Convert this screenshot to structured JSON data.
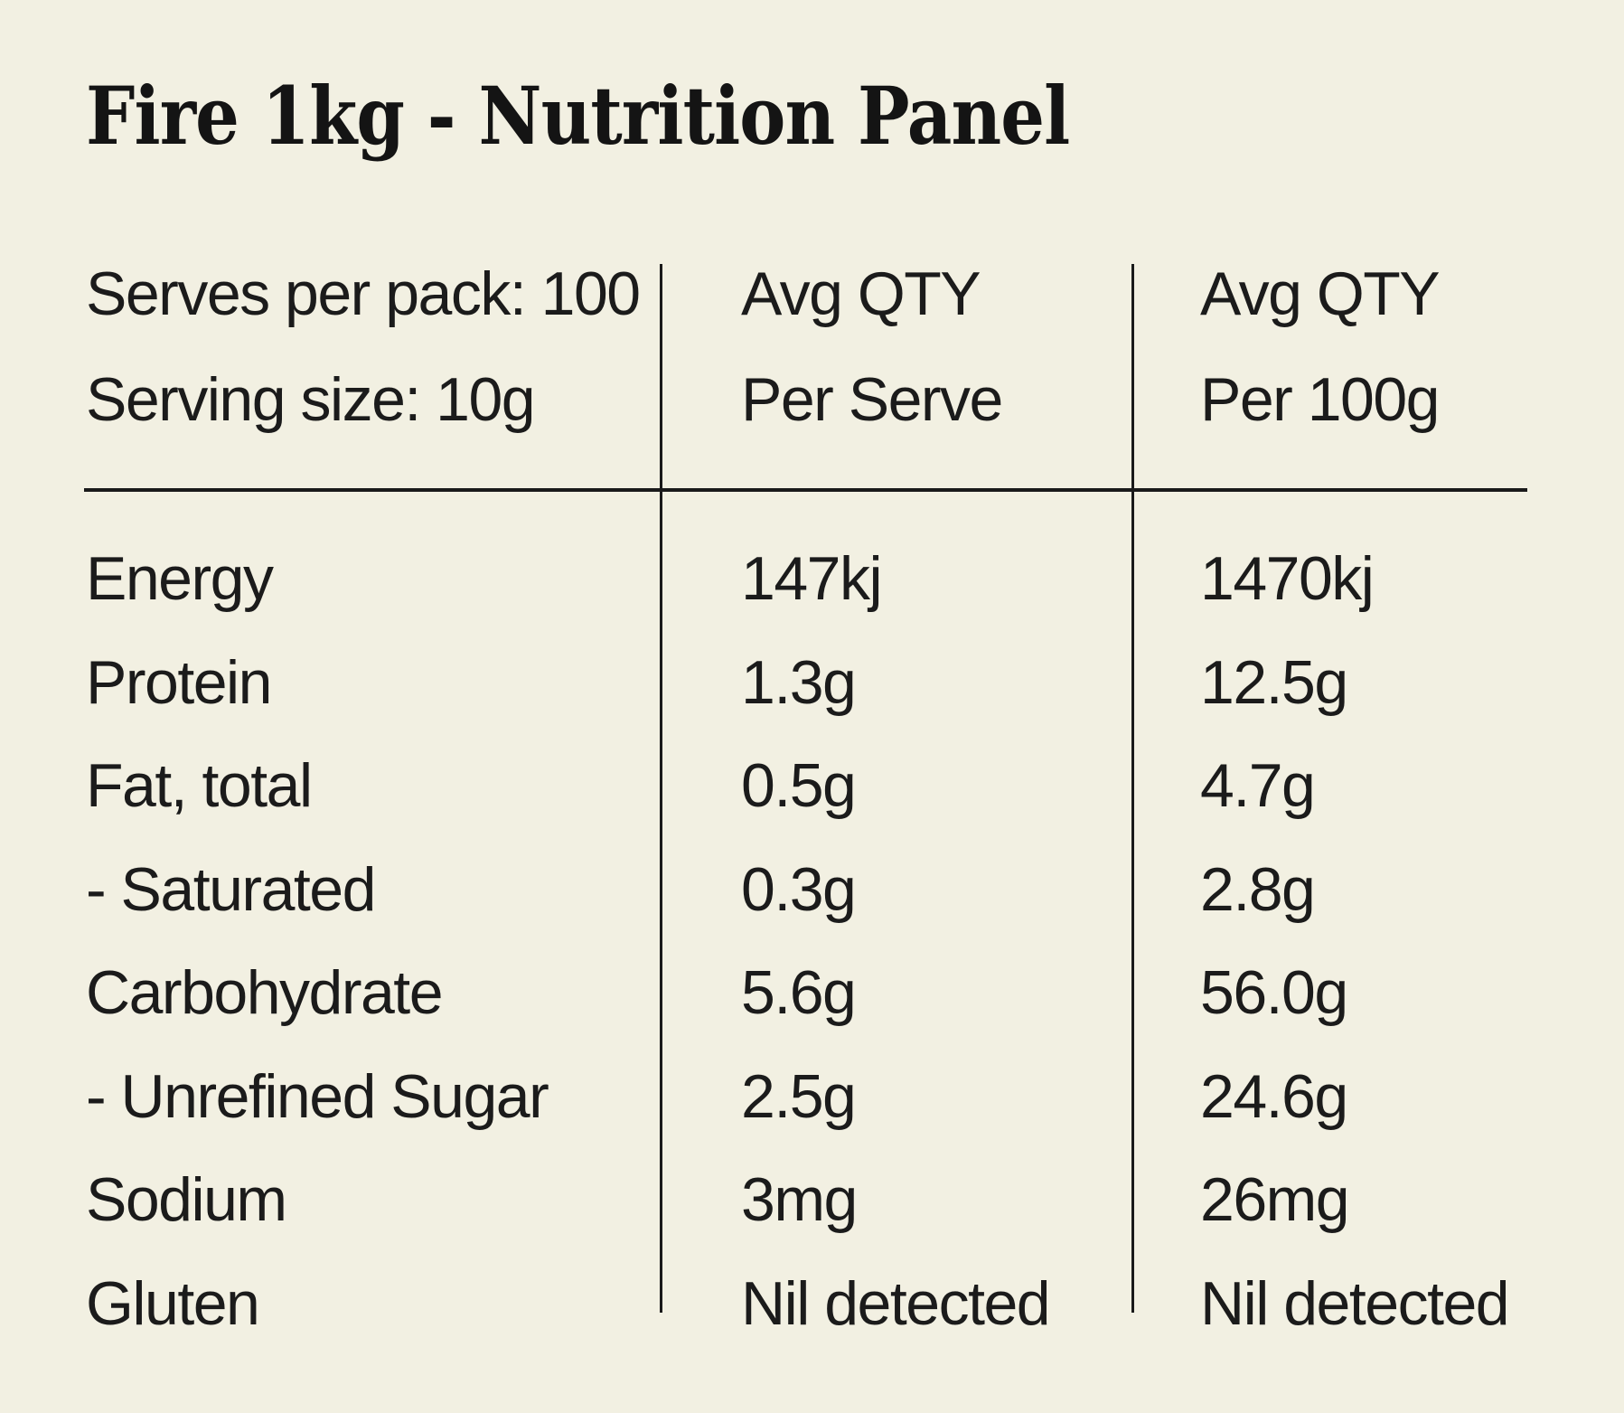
{
  "page": {
    "title": "Fire 1kg - Nutrition Panel"
  },
  "colors": {
    "background": "#f2f0e2",
    "ink": "#1b1b1b",
    "title_ink": "#141414",
    "rule": "#1a1a1a"
  },
  "table": {
    "header": {
      "serves_per_pack": "Serves per pack: 100",
      "serving_size": "Serving size: 10g",
      "per_serve_line1": "Avg QTY",
      "per_serve_line2": "Per Serve",
      "per_100g_line1": "Avg QTY",
      "per_100g_line2": "Per 100g"
    },
    "rows": [
      {
        "label": "Energy",
        "per_serve": "147kj",
        "per_100g": "1470kj"
      },
      {
        "label": "Protein",
        "per_serve": "1.3g",
        "per_100g": "12.5g"
      },
      {
        "label": "Fat, total",
        "per_serve": "0.5g",
        "per_100g": "4.7g"
      },
      {
        "label": "- Saturated",
        "per_serve": "0.3g",
        "per_100g": "2.8g"
      },
      {
        "label": "Carbohydrate",
        "per_serve": "5.6g",
        "per_100g": "56.0g"
      },
      {
        "label": "- Unrefined Sugar",
        "per_serve": "2.5g",
        "per_100g": "24.6g"
      },
      {
        "label": "Sodium",
        "per_serve": "3mg",
        "per_100g": "26mg"
      },
      {
        "label": "Gluten",
        "per_serve": "Nil detected",
        "per_100g": "Nil detected"
      }
    ]
  }
}
